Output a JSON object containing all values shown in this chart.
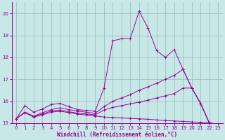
{
  "background_color": "#c8e8e8",
  "grid_color": "#9bbfbf",
  "line_color": "#990099",
  "xlim": [
    -0.5,
    23.5
  ],
  "ylim": [
    15.0,
    20.5
  ],
  "xticks": [
    0,
    1,
    2,
    3,
    4,
    5,
    6,
    7,
    8,
    9,
    10,
    11,
    12,
    13,
    14,
    15,
    16,
    17,
    18,
    19,
    20,
    21,
    22,
    23
  ],
  "yticks": [
    15,
    16,
    17,
    18,
    19,
    20
  ],
  "xlabel": "Windchill (Refroidissement éolien,°C)",
  "lines": [
    {
      "x": [
        0,
        1,
        2,
        3,
        4,
        5,
        6,
        7,
        8,
        9,
        10,
        11,
        12,
        13,
        14,
        15,
        16,
        17,
        18,
        19,
        20,
        21,
        22,
        23
      ],
      "y": [
        15.2,
        15.8,
        15.5,
        15.65,
        15.85,
        15.9,
        15.75,
        15.62,
        15.58,
        15.55,
        16.6,
        18.75,
        18.85,
        18.85,
        20.1,
        19.35,
        18.3,
        18.0,
        18.35,
        17.45,
        16.6,
        15.9,
        15.0,
        14.9
      ]
    },
    {
      "x": [
        0,
        1,
        2,
        3,
        4,
        5,
        6,
        7,
        8,
        9,
        10,
        11,
        12,
        13,
        14,
        15,
        16,
        17,
        18,
        19,
        20,
        21,
        22,
        23
      ],
      "y": [
        15.2,
        15.5,
        15.32,
        15.48,
        15.62,
        15.7,
        15.62,
        15.55,
        15.5,
        15.45,
        15.75,
        16.0,
        16.15,
        16.3,
        16.5,
        16.65,
        16.82,
        17.0,
        17.18,
        17.45,
        16.6,
        15.9,
        15.0,
        14.9
      ]
    },
    {
      "x": [
        0,
        1,
        2,
        3,
        4,
        5,
        6,
        7,
        8,
        9,
        10,
        11,
        12,
        13,
        14,
        15,
        16,
        17,
        18,
        19,
        20,
        21,
        22,
        23
      ],
      "y": [
        15.2,
        15.48,
        15.3,
        15.42,
        15.55,
        15.6,
        15.52,
        15.46,
        15.42,
        15.38,
        15.6,
        15.72,
        15.8,
        15.88,
        15.96,
        16.05,
        16.15,
        16.25,
        16.35,
        16.6,
        16.6,
        15.9,
        15.0,
        14.9
      ]
    },
    {
      "x": [
        0,
        1,
        2,
        3,
        4,
        5,
        6,
        7,
        8,
        9,
        10,
        11,
        12,
        13,
        14,
        15,
        16,
        17,
        18,
        19,
        20,
        21,
        22,
        23
      ],
      "y": [
        15.2,
        15.48,
        15.28,
        15.38,
        15.5,
        15.55,
        15.48,
        15.42,
        15.37,
        15.33,
        15.28,
        15.26,
        15.24,
        15.22,
        15.2,
        15.18,
        15.15,
        15.12,
        15.1,
        15.08,
        15.06,
        15.04,
        15.02,
        14.95
      ]
    }
  ]
}
